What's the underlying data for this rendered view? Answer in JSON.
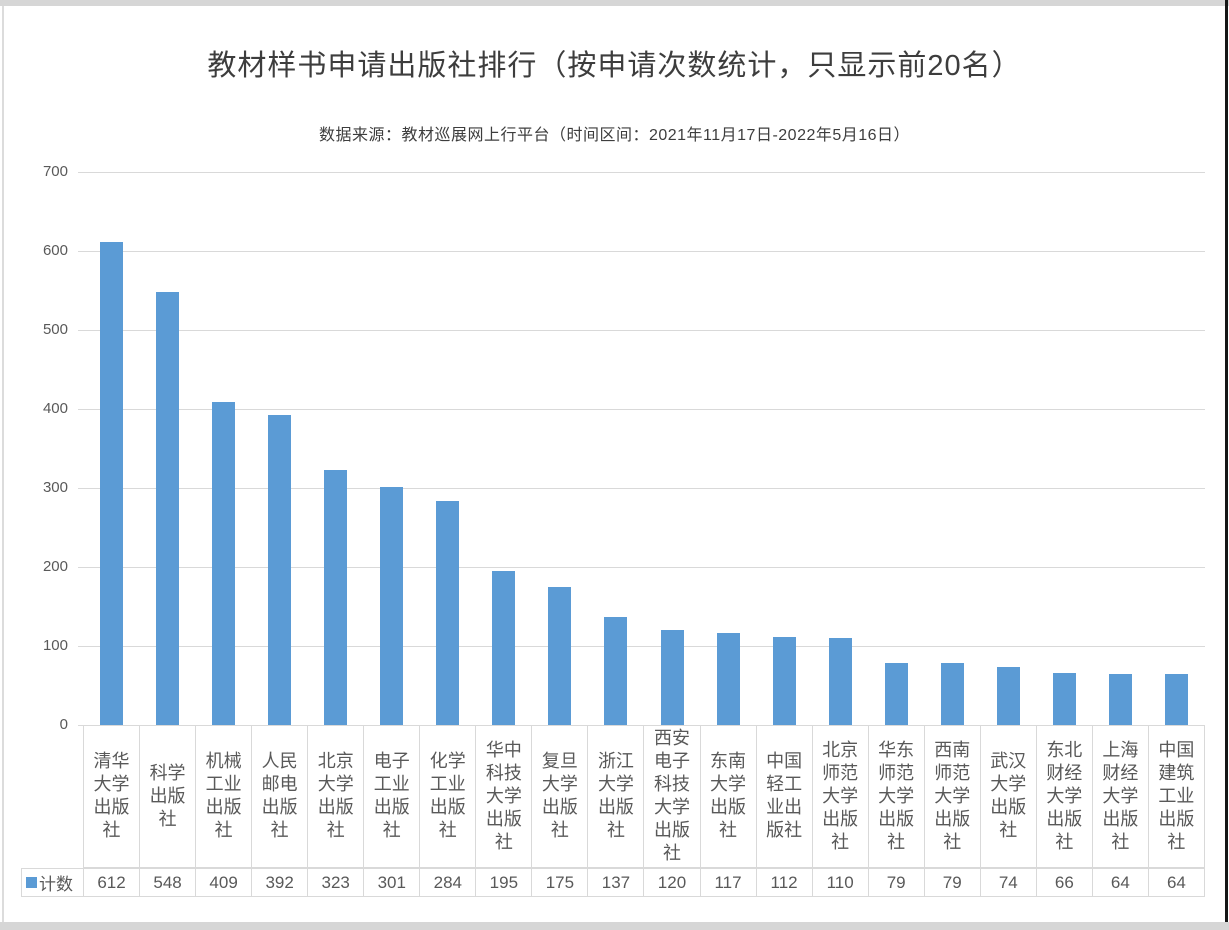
{
  "header": {
    "title": "教材样书申请出版社排行（按申请次数统计，只显示前20名）",
    "subtitle": "数据来源：教材巡展网上行平台（时间区间：2021年11月17日-2022年5月16日）"
  },
  "legend": {
    "label": "计数"
  },
  "colors": {
    "bar": "#5B9BD5",
    "gridline": "#D9D9D9",
    "axis_text": "#595959",
    "title_text": "#3D3D3D",
    "table_border": "#D9D9D9"
  },
  "chart_data": {
    "type": "bar",
    "title": "教材样书申请出版社排行（按申请次数统计，只显示前20名）",
    "subtitle": "数据来源：教材巡展网上行平台（时间区间：2021年11月17日-2022年5月16日）",
    "categories": [
      "清华大学出版社",
      "科学出版社",
      "机械工业出版社",
      "人民邮电出版社",
      "北京大学出版社",
      "电子工业出版社",
      "化学工业出版社",
      "华中科技大学出版社",
      "复旦大学出版社",
      "浙江大学出版社",
      "西安电子科技大学出版社",
      "东南大学出版社",
      "中国轻工业出版社",
      "北京师范大学出版社",
      "华东师范大学出版社",
      "西南师范大学出版社",
      "武汉大学出版社",
      "东北财经大学出版社",
      "上海财经大学出版社",
      "中国建筑工业出版社"
    ],
    "series": [
      {
        "name": "计数",
        "values": [
          612,
          548,
          409,
          392,
          323,
          301,
          284,
          195,
          175,
          137,
          120,
          117,
          112,
          110,
          79,
          79,
          74,
          66,
          64,
          64
        ]
      }
    ],
    "xlabel": "",
    "ylabel": "",
    "ylim": [
      0,
      700
    ],
    "yticks": [
      0,
      100,
      200,
      300,
      400,
      500,
      600,
      700
    ],
    "grid": "horizontal",
    "legend_position": "bottom-left",
    "data_table_shown": true
  }
}
